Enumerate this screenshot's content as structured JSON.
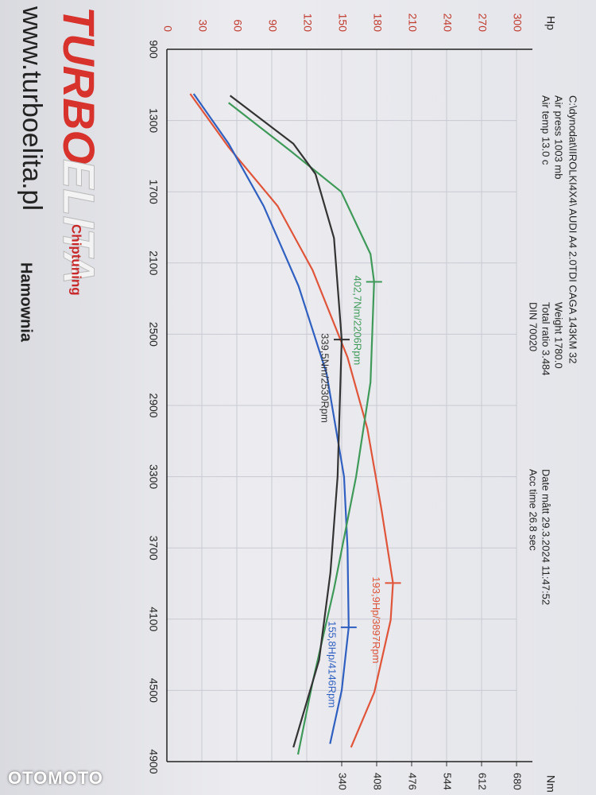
{
  "chart_data": {
    "type": "line",
    "header": {
      "file": "C:\\dynodat\\IIROLKI4X4\\ AUDI A4 2.0TDI CAGA 143KM 32",
      "air_press": "Air press  1003 mb",
      "air_temp": "Air temp  13.0 c",
      "weight": "Weight   1780.0",
      "ratio": "Total ratio 3.484",
      "din": "DIN 70020",
      "date": "Date mått 29.3.2024 11:47:52",
      "acc": "Acc time  26.8 sec"
    },
    "y_label": "Hp",
    "y2_label": "Nm",
    "xlim": [
      900,
      4900
    ],
    "xticks": [
      900,
      1300,
      1700,
      2100,
      2500,
      2900,
      3300,
      3700,
      4100,
      4500,
      4900
    ],
    "ylim": [
      0,
      300
    ],
    "yticks": [
      0,
      30,
      60,
      90,
      120,
      150,
      180,
      210,
      240,
      270,
      300
    ],
    "y2lim": [
      0,
      680
    ],
    "y2ticks": [
      340,
      408,
      476,
      544,
      612,
      680
    ],
    "grid": true,
    "series": [
      {
        "color": "#e0553a",
        "x": [
          1150,
          1450,
          1780,
          2140,
          2630,
          3030,
          3480,
          3897,
          4105,
          4510,
          4820
        ],
        "values": [
          20,
          53,
          95,
          125,
          155,
          172,
          184,
          194,
          192,
          178,
          158
        ]
      },
      {
        "color": "#2f5fc0",
        "x": [
          1150,
          1430,
          1780,
          2230,
          2720,
          3300,
          3700,
          4146,
          4500,
          4800
        ],
        "values": [
          23,
          53,
          83,
          113,
          137,
          152,
          155,
          156,
          150,
          140
        ]
      },
      {
        "color": "#3f9a5a",
        "axis": "y2",
        "x": [
          1200,
          1470,
          1700,
          2050,
          2206,
          2770,
          3300,
          3930,
          4460,
          4860
        ],
        "values": [
          120,
          240,
          339,
          396,
          403,
          396,
          368,
          325,
          283,
          255
        ]
      },
      {
        "color": "#333333",
        "axis": "y2",
        "x": [
          1160,
          1430,
          1600,
          1960,
          2530,
          3300,
          3840,
          4330,
          4820
        ],
        "values": [
          123,
          246,
          289,
          325,
          340,
          332,
          318,
          296,
          246
        ]
      }
    ],
    "annotations": [
      {
        "series": 2,
        "text": "402,7Nm/2206Rpm"
      },
      {
        "series": 3,
        "text": "339,5Nm/2530Rpm"
      },
      {
        "series": 0,
        "text": "193,9Hp/3897Rpm"
      },
      {
        "series": 1,
        "text": "155,8Hp/4146Rpm"
      }
    ],
    "brand": {
      "logo_a": "TURBO",
      "logo_b": "ELITA",
      "url": "www.turboelita.pl",
      "chip": "Chiptuning",
      "dyno": "Hamownia"
    },
    "watermark": "OTOMOTO"
  }
}
